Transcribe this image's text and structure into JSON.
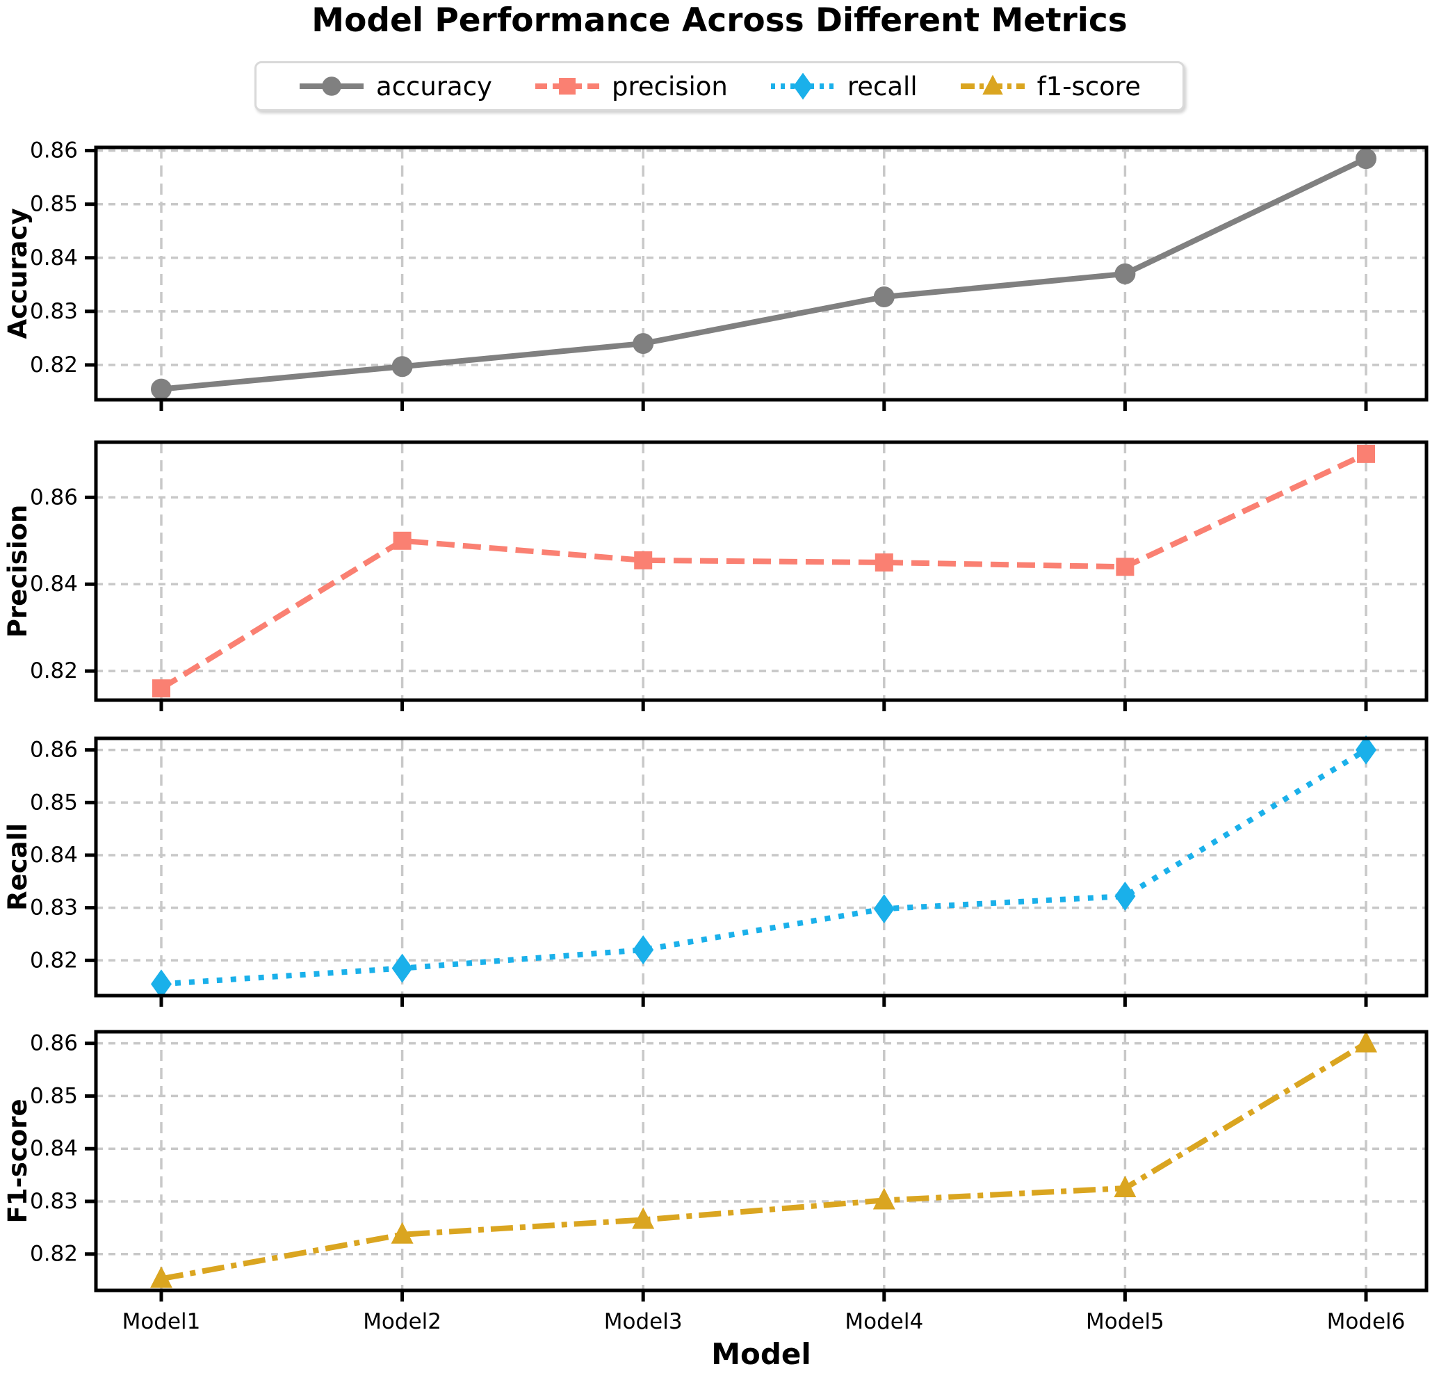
{
  "title": "Model Performance Across Different Metrics",
  "xlabel": "Model",
  "legend": {
    "items": [
      "accuracy",
      "precision",
      "recall",
      "f1-score"
    ]
  },
  "chart_data": {
    "type": "line",
    "categories": [
      "Model1",
      "Model2",
      "Model3",
      "Model4",
      "Model5",
      "Model6"
    ],
    "grid": true,
    "grid_color": "#c8c8c8",
    "axis_color": "#000000",
    "legend_position": "top center",
    "series": [
      {
        "name": "accuracy",
        "color": "#808080",
        "linestyle": "solid",
        "marker": "circle",
        "values": [
          0.8155,
          0.8197,
          0.824,
          0.8327,
          0.837,
          0.8585
        ]
      },
      {
        "name": "precision",
        "color": "#FA8072",
        "linestyle": "dashed",
        "marker": "square",
        "values": [
          0.816,
          0.85,
          0.8455,
          0.845,
          0.844,
          0.87
        ]
      },
      {
        "name": "recall",
        "color": "#1AB0EA",
        "linestyle": "dotted",
        "marker": "diamond",
        "values": [
          0.8155,
          0.8185,
          0.822,
          0.8298,
          0.8322,
          0.86
        ]
      },
      {
        "name": "f1-score",
        "color": "#DAA520",
        "linestyle": "dashdot",
        "marker": "triangle",
        "values": [
          0.8153,
          0.8237,
          0.8265,
          0.8302,
          0.8325,
          0.86
        ]
      }
    ],
    "subplots": [
      {
        "ylabel": "Accuracy",
        "series": "accuracy",
        "ylim": [
          0.8135,
          0.8606
        ],
        "yticks": [
          0.82,
          0.83,
          0.84,
          0.85,
          0.86
        ],
        "yticklabels": [
          "0.82",
          "0.83",
          "0.84",
          "0.85",
          "0.86"
        ]
      },
      {
        "ylabel": "Precision",
        "series": "precision",
        "ylim": [
          0.8133,
          0.8727
        ],
        "yticks": [
          0.82,
          0.84,
          0.86
        ],
        "yticklabels": [
          "0.82",
          "0.84",
          "0.86"
        ]
      },
      {
        "ylabel": "Recall",
        "series": "recall",
        "ylim": [
          0.8133,
          0.8622
        ],
        "yticks": [
          0.82,
          0.83,
          0.84,
          0.85,
          0.86
        ],
        "yticklabels": [
          "0.82",
          "0.83",
          "0.84",
          "0.85",
          "0.86"
        ]
      },
      {
        "ylabel": "F1-score",
        "series": "f1-score",
        "ylim": [
          0.8131,
          0.8622
        ],
        "yticks": [
          0.82,
          0.83,
          0.84,
          0.85,
          0.86
        ],
        "yticklabels": [
          "0.82",
          "0.83",
          "0.84",
          "0.85",
          "0.86"
        ]
      }
    ]
  }
}
